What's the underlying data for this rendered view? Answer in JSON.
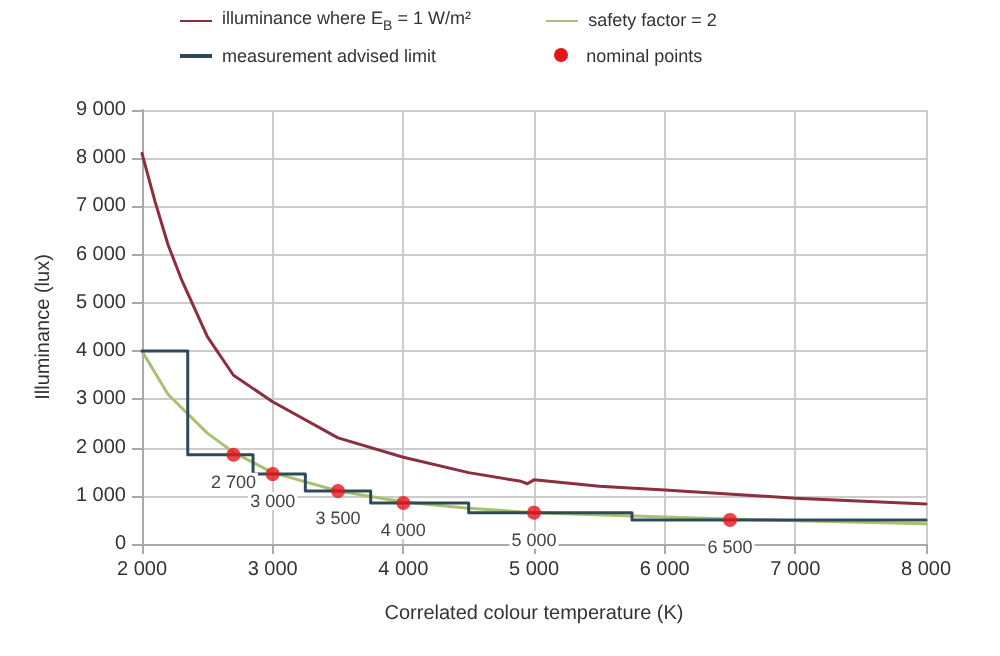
{
  "chart_data": {
    "type": "line",
    "xlabel": "Correlated colour temperature (K)",
    "ylabel": "Illuminance (lux)",
    "xlim": [
      2000,
      8000
    ],
    "xticks": [
      {
        "value": 2000,
        "label": "2 000"
      },
      {
        "value": 3000,
        "label": "3 000"
      },
      {
        "value": 4000,
        "label": "4 000"
      },
      {
        "value": 5000,
        "label": "5 000"
      },
      {
        "value": 6000,
        "label": "6 000"
      },
      {
        "value": 7000,
        "label": "7 000"
      },
      {
        "value": 8000,
        "label": "8 000"
      }
    ],
    "ylim": [
      0,
      9000
    ],
    "yticks": [
      0,
      {
        "value": 1000,
        "label": "1 000"
      },
      {
        "value": 2000,
        "label": "2 000"
      },
      {
        "value": 3000,
        "label": "3 000"
      },
      {
        "value": 4000,
        "label": "4 000"
      },
      {
        "value": 5000,
        "label": "5 000"
      },
      {
        "value": 6000,
        "label": "6 000"
      },
      {
        "value": 7000,
        "label": "7 000"
      },
      {
        "value": 8000,
        "label": "8 000"
      },
      {
        "value": 9000,
        "label": "9 000"
      }
    ],
    "annotations": [
      {
        "text": "2 700",
        "x": 2700,
        "y": 1850
      },
      {
        "text": "3 000",
        "x": 3000,
        "y": 1450
      },
      {
        "text": "3 500",
        "x": 3500,
        "y": 1100
      },
      {
        "text": "4 000",
        "x": 4000,
        "y": 850
      },
      {
        "text": "5 000",
        "x": 5000,
        "y": 650
      },
      {
        "text": "6 500",
        "x": 6500,
        "y": 500
      }
    ],
    "grid": true,
    "legend": "top",
    "marker": "none",
    "line_style": "solid",
    "series": [
      {
        "name": "illuminance where E$_{B}$ = 1 W/m²",
        "color": "#8b2e3e",
        "x": [
          2000,
          2100,
          2200,
          2300,
          2500,
          2700,
          3000,
          3500,
          4000,
          4500,
          4900,
          4950,
          5000,
          5500,
          6000,
          7000,
          8000
        ],
        "values": [
          8100,
          7100,
          6200,
          5500,
          4300,
          3500,
          2950,
          2200,
          1800,
          1480,
          1300,
          1250,
          1330,
          1200,
          1120,
          950,
          830
        ]
      },
      {
        "name": "safety factor = 2",
        "color": "#a8c070",
        "x": [
          2000,
          2200,
          2500,
          2700,
          3000,
          3500,
          4000,
          4500,
          5000,
          6000,
          7000,
          8000
        ],
        "values": [
          4000,
          3100,
          2300,
          1900,
          1480,
          1100,
          870,
          740,
          650,
          560,
          480,
          420
        ]
      },
      {
        "name": "measurement advised limit",
        "type": "step",
        "color": "#2e4a5a",
        "x": [
          2000,
          2350,
          2850,
          3250,
          3750,
          4500,
          5750,
          8000
        ],
        "values": [
          4000,
          1850,
          1450,
          1100,
          850,
          650,
          500,
          500
        ]
      },
      {
        "name": "nominal points",
        "type": "scatter",
        "marker": "circle",
        "color": "#e8141c",
        "x": [
          2700,
          3000,
          3500,
          4000,
          5000,
          6500
        ],
        "values": [
          1850,
          1450,
          1100,
          850,
          650,
          500
        ]
      }
    ]
  }
}
